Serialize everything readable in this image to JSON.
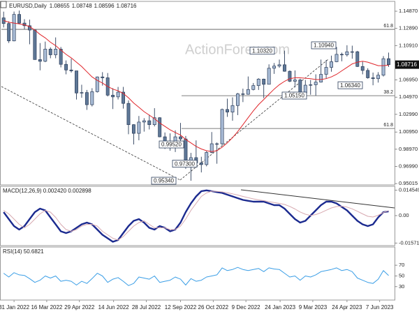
{
  "chart_data": [
    {
      "type": "candlestick",
      "title": "EURUSD,Daily",
      "ohlc": [
        1.08655,
        1.08748,
        1.08596,
        1.08716
      ],
      "watermark": "ActionForex.com",
      "x": [
        "2022-01-17",
        "2022-01-24",
        "2022-01-31",
        "2022-02-07",
        "2022-02-14",
        "2022-02-21",
        "2022-02-28",
        "2022-03-07",
        "2022-03-14",
        "2022-03-21",
        "2022-03-28",
        "2022-04-04",
        "2022-04-11",
        "2022-04-18",
        "2022-04-25",
        "2022-05-02",
        "2022-05-09",
        "2022-05-16",
        "2022-05-23",
        "2022-05-30",
        "2022-06-06",
        "2022-06-13",
        "2022-06-20",
        "2022-06-27",
        "2022-07-04",
        "2022-07-11",
        "2022-07-18",
        "2022-07-25",
        "2022-08-01",
        "2022-08-08",
        "2022-08-15",
        "2022-08-22",
        "2022-08-29",
        "2022-09-05",
        "2022-09-12",
        "2022-09-19",
        "2022-09-26",
        "2022-10-03",
        "2022-10-10",
        "2022-10-17",
        "2022-10-24",
        "2022-10-31",
        "2022-11-07",
        "2022-11-14",
        "2022-11-21",
        "2022-11-28",
        "2022-12-05",
        "2022-12-12",
        "2022-12-19",
        "2022-12-26",
        "2023-01-02",
        "2023-01-09",
        "2023-01-16",
        "2023-01-23",
        "2023-01-30",
        "2023-02-06",
        "2023-02-13",
        "2023-02-20",
        "2023-02-27",
        "2023-03-06",
        "2023-03-13",
        "2023-03-20",
        "2023-03-27",
        "2023-04-03",
        "2023-04-10",
        "2023-04-17",
        "2023-04-24",
        "2023-05-01",
        "2023-05-08",
        "2023-05-15",
        "2023-05-22",
        "2023-05-29",
        "2023-06-05",
        "2023-06-12",
        "2023-06-19"
      ],
      "open": [
        1.141,
        1.1345,
        1.1145,
        1.145,
        1.135,
        1.132,
        1.127,
        1.093,
        1.091,
        1.105,
        1.0985,
        1.105,
        1.0875,
        1.081,
        1.08,
        1.0545,
        1.055,
        1.041,
        1.056,
        1.073,
        1.072,
        1.052,
        1.05,
        1.0555,
        1.0425,
        1.018,
        1.008,
        1.021,
        1.0225,
        1.018,
        1.026,
        1.004,
        0.9965,
        0.9955,
        1.004,
        1.0015,
        0.969,
        0.98,
        0.974,
        0.972,
        0.986,
        0.996,
        0.996,
        1.0355,
        1.0325,
        1.04,
        1.0535,
        1.053,
        1.0585,
        1.063,
        1.0705,
        1.0645,
        1.083,
        1.0855,
        1.087,
        1.0795,
        1.068,
        1.0695,
        1.0545,
        1.0635,
        1.064,
        1.067,
        1.076,
        1.084,
        1.0905,
        1.099,
        1.0985,
        1.102,
        1.102,
        1.085,
        1.0805,
        1.072,
        1.071,
        1.075,
        1.094
      ],
      "high": [
        1.1482,
        1.137,
        1.1483,
        1.1495,
        1.1395,
        1.139,
        1.1275,
        1.112,
        1.1137,
        1.107,
        1.1185,
        1.1075,
        1.092,
        1.094,
        1.079,
        1.064,
        1.058,
        1.06,
        1.0735,
        1.0785,
        1.0775,
        1.06,
        1.0615,
        1.0615,
        1.046,
        1.0185,
        1.028,
        1.0255,
        1.0295,
        1.037,
        1.0265,
        1.009,
        1.008,
        1.0115,
        1.02,
        1.005,
        0.9855,
        0.9999,
        0.981,
        0.9875,
        1.0095,
        0.9975,
        1.0365,
        1.048,
        1.0495,
        1.0545,
        1.0595,
        1.0735,
        1.066,
        1.0715,
        1.071,
        1.0875,
        1.089,
        1.093,
        1.1032,
        1.0805,
        1.0805,
        1.071,
        1.0695,
        1.0695,
        1.076,
        1.093,
        1.0925,
        1.0975,
        1.1075,
        1.101,
        1.1095,
        1.109,
        1.103,
        1.0905,
        1.083,
        1.078,
        1.0785,
        1.097,
        1.101
      ],
      "low": [
        1.13,
        1.1121,
        1.114,
        1.134,
        1.128,
        1.1106,
        1.093,
        1.0806,
        1.09,
        1.0945,
        1.0945,
        1.084,
        1.076,
        1.078,
        1.047,
        1.049,
        1.035,
        1.039,
        1.055,
        1.063,
        1.0505,
        1.036,
        1.047,
        1.0365,
        1.007,
        0.9952,
        1.0,
        1.01,
        1.0125,
        1.016,
        1.0035,
        0.99,
        0.988,
        0.9865,
        0.9955,
        0.967,
        0.9534,
        0.9735,
        0.963,
        0.97,
        0.985,
        0.973,
        0.9935,
        1.027,
        1.0225,
        1.029,
        1.044,
        1.0525,
        1.0575,
        1.058,
        1.0485,
        1.0645,
        1.0765,
        1.0835,
        1.079,
        1.067,
        1.061,
        1.0535,
        1.0535,
        1.0525,
        1.0515,
        1.0665,
        1.071,
        1.079,
        1.09,
        1.091,
        1.0965,
        1.094,
        1.0845,
        1.076,
        1.071,
        1.0634,
        1.0665,
        1.0735,
        1.0845
      ],
      "close": [
        1.1345,
        1.1145,
        1.145,
        1.135,
        1.132,
        1.127,
        1.093,
        1.091,
        1.105,
        1.0985,
        1.105,
        1.0875,
        1.081,
        1.08,
        1.0545,
        1.055,
        1.041,
        1.056,
        1.073,
        1.072,
        1.052,
        1.05,
        1.0555,
        1.0425,
        1.018,
        1.008,
        1.021,
        1.0225,
        1.018,
        1.026,
        1.004,
        0.9965,
        0.9955,
        1.004,
        1.0015,
        0.969,
        0.98,
        0.974,
        0.972,
        0.986,
        0.996,
        0.996,
        1.0355,
        1.0325,
        1.04,
        1.0535,
        1.053,
        1.0585,
        1.063,
        1.0705,
        1.0645,
        1.083,
        1.0855,
        1.087,
        1.0795,
        1.068,
        1.0695,
        1.0545,
        1.0635,
        1.064,
        1.067,
        1.076,
        1.084,
        1.0905,
        1.099,
        1.0985,
        1.102,
        1.102,
        1.085,
        1.0805,
        1.072,
        1.071,
        1.075,
        1.094,
        1.08716
      ],
      "up_color": "#a9bcd6",
      "down_color": "#5f7897",
      "outline_color": "#2b3d5a",
      "overlays": [
        {
          "color": "#e0262b",
          "values": [
            1.138,
            1.136,
            1.135,
            1.134,
            1.133,
            1.131,
            1.127,
            1.122,
            1.118,
            1.113,
            1.109,
            1.104,
            1.099,
            1.095,
            1.09,
            1.085,
            1.079,
            1.073,
            1.069,
            1.066,
            1.062,
            1.059,
            1.057,
            1.054,
            1.049,
            1.043,
            1.038,
            1.033,
            1.029,
            1.025,
            1.02,
            1.016,
            1.012,
            1.009,
            1.006,
            1.001,
            0.997,
            0.993,
            0.99,
            0.988,
            0.987,
            0.988,
            0.992,
            0.997,
            1.003,
            1.01,
            1.018,
            1.026,
            1.034,
            1.041,
            1.047,
            1.053,
            1.059,
            1.064,
            1.068,
            1.071,
            1.072,
            1.072,
            1.0715,
            1.071,
            1.07,
            1.07,
            1.071,
            1.073,
            1.076,
            1.08,
            1.084,
            1.088,
            1.09,
            1.091,
            1.09,
            1.088,
            1.086,
            1.086,
            1.0865
          ]
        }
      ],
      "annotations": [
        {
          "value": 0.9952,
          "label": "0.99520"
        },
        {
          "value": 0.973,
          "label": "0.97300"
        },
        {
          "value": 0.9534,
          "label": "0.95340"
        },
        {
          "value": 1.1032,
          "label": "1.10320"
        },
        {
          "value": 1.0515,
          "label": "1.05150"
        },
        {
          "value": 1.1094,
          "label": "1.10940"
        },
        {
          "value": 1.0634,
          "label": "1.06340"
        }
      ],
      "levels": [
        {
          "value": 1.1278,
          "label": "61.8"
        },
        {
          "value": 1.0514,
          "label": "38.2"
        },
        {
          "value": 1.0136,
          "label": "61.8"
        }
      ],
      "xlim": [
        "2022-01-14",
        "2023-06-27"
      ],
      "xticks": [
        {
          "value": "2022-01-31",
          "label": "31 Jan 2022"
        },
        {
          "value": "2022-03-16",
          "label": "16 Mar 2022"
        },
        {
          "value": "2022-04-29",
          "label": "29 Apr 2022"
        },
        {
          "value": "2022-06-14",
          "label": "14 Jun 2022"
        },
        {
          "value": "2022-07-28",
          "label": "28 Jul 2022"
        },
        {
          "value": "2022-09-12",
          "label": "12 Sep 2022"
        },
        {
          "value": "2022-10-26",
          "label": "26 Oct 2022"
        },
        {
          "value": "2022-12-09",
          "label": "9 Dec 2022"
        },
        {
          "value": "2023-01-24",
          "label": "24 Jan 2023"
        },
        {
          "value": "2023-03-09",
          "label": "9 Mar 2023"
        },
        {
          "value": "2023-04-24",
          "label": "24 Apr 2023"
        },
        {
          "value": "2023-06-07",
          "label": "7 Jun 2023"
        }
      ],
      "ylim": [
        0.9486,
        1.16
      ],
      "yticks": [
        {
          "value": 1.1487,
          "label": "1.14870"
        },
        {
          "value": 1.1289,
          "label": "1.12890"
        },
        {
          "value": 1.1091,
          "label": "1.10910"
        },
        {
          "value": 1.0893,
          "label": "1.08930"
        },
        {
          "value": 1.0695,
          "label": "1.06950"
        },
        {
          "value": 1.0497,
          "label": "1.04970"
        },
        {
          "value": 1.0299,
          "label": "1.02990"
        },
        {
          "value": 1.0095,
          "label": "1.00950"
        },
        {
          "value": 0.9897,
          "label": "0.98970"
        },
        {
          "value": 0.9699,
          "label": "0.96990"
        },
        {
          "value": 0.95015,
          "label": "0.95015"
        }
      ]
    },
    {
      "type": "line",
      "title": "MACD(12,26,9) 0.002420 0.002898",
      "series": [
        {
          "color": "#1b2a8f",
          "width": 2.4,
          "values": [
            0.002,
            -0.002,
            -0.006,
            -0.008,
            -0.006,
            -0.002,
            0.002,
            0.004,
            0.003,
            -0.001,
            -0.005,
            -0.009,
            -0.01,
            -0.009,
            -0.007,
            -0.005,
            -0.004,
            -0.005,
            -0.008,
            -0.011,
            -0.013,
            -0.015,
            -0.014,
            -0.01,
            -0.006,
            -0.003,
            -0.002,
            -0.004,
            -0.007,
            -0.008,
            -0.006,
            -0.007,
            -0.009,
            -0.008,
            -0.004,
            0.002,
            0.007,
            0.011,
            0.014,
            0.0145,
            0.014,
            0.0135,
            0.013,
            0.012,
            0.011,
            0.01,
            0.009,
            0.0085,
            0.008,
            0.008,
            0.008,
            0.007,
            0.006,
            0.006,
            0.004,
            0.001,
            -0.002,
            -0.004,
            -0.003,
            0.0,
            0.003,
            0.006,
            0.008,
            0.008,
            0.007,
            0.005,
            0.003,
            0.0,
            -0.003,
            -0.005,
            -0.006,
            -0.005,
            -0.001,
            0.002,
            0.00242
          ]
        },
        {
          "color": "#d7a9b0",
          "width": 1,
          "values": [
            0.003,
            0.001,
            -0.002,
            -0.005,
            -0.007,
            -0.005,
            -0.002,
            0.001,
            0.003,
            0.002,
            -0.001,
            -0.005,
            -0.008,
            -0.009,
            -0.008,
            -0.006,
            -0.005,
            -0.005,
            -0.006,
            -0.009,
            -0.011,
            -0.013,
            -0.014,
            -0.012,
            -0.009,
            -0.006,
            -0.004,
            -0.003,
            -0.005,
            -0.007,
            -0.007,
            -0.007,
            -0.008,
            -0.008,
            -0.006,
            -0.002,
            0.003,
            0.007,
            0.011,
            0.013,
            0.014,
            0.0139,
            0.0136,
            0.0131,
            0.0125,
            0.0118,
            0.011,
            0.0103,
            0.0096,
            0.009,
            0.0086,
            0.008,
            0.0075,
            0.007,
            0.0064,
            0.0053,
            0.0038,
            0.0021,
            0.0008,
            0.0001,
            0.0006,
            0.0017,
            0.0031,
            0.0044,
            0.0052,
            0.0054,
            0.0049,
            0.0039,
            0.0025,
            0.001,
            -0.0004,
            -0.0008,
            0.0002,
            0.0018,
            0.002898
          ]
        }
      ],
      "ylim": [
        -0.0172,
        0.0168
      ],
      "yticks": [
        0.014549,
        {
          "value": 0,
          "label": "0.00"
        },
        -0.015712
      ]
    },
    {
      "type": "line",
      "title": "RSI(14) 50.6821",
      "series": [
        {
          "color": "#3a9ee6",
          "width": 1,
          "values": [
            55,
            48,
            56,
            52,
            51,
            45,
            38,
            42,
            50,
            46,
            50,
            40,
            42,
            40,
            33,
            40,
            36,
            45,
            55,
            50,
            38,
            44,
            47,
            40,
            32,
            36,
            48,
            46,
            44,
            50,
            38,
            40,
            42,
            48,
            44,
            33,
            45,
            40,
            42,
            48,
            50,
            52,
            65,
            60,
            62,
            66,
            62,
            60,
            62,
            64,
            58,
            65,
            63,
            62,
            55,
            48,
            50,
            42,
            50,
            48,
            52,
            58,
            60,
            62,
            65,
            60,
            62,
            58,
            46,
            42,
            38,
            36,
            44,
            60,
            50.6821
          ]
        }
      ],
      "ylim": [
        5,
        104
      ],
      "yticks": [
        70,
        50,
        30
      ]
    }
  ]
}
